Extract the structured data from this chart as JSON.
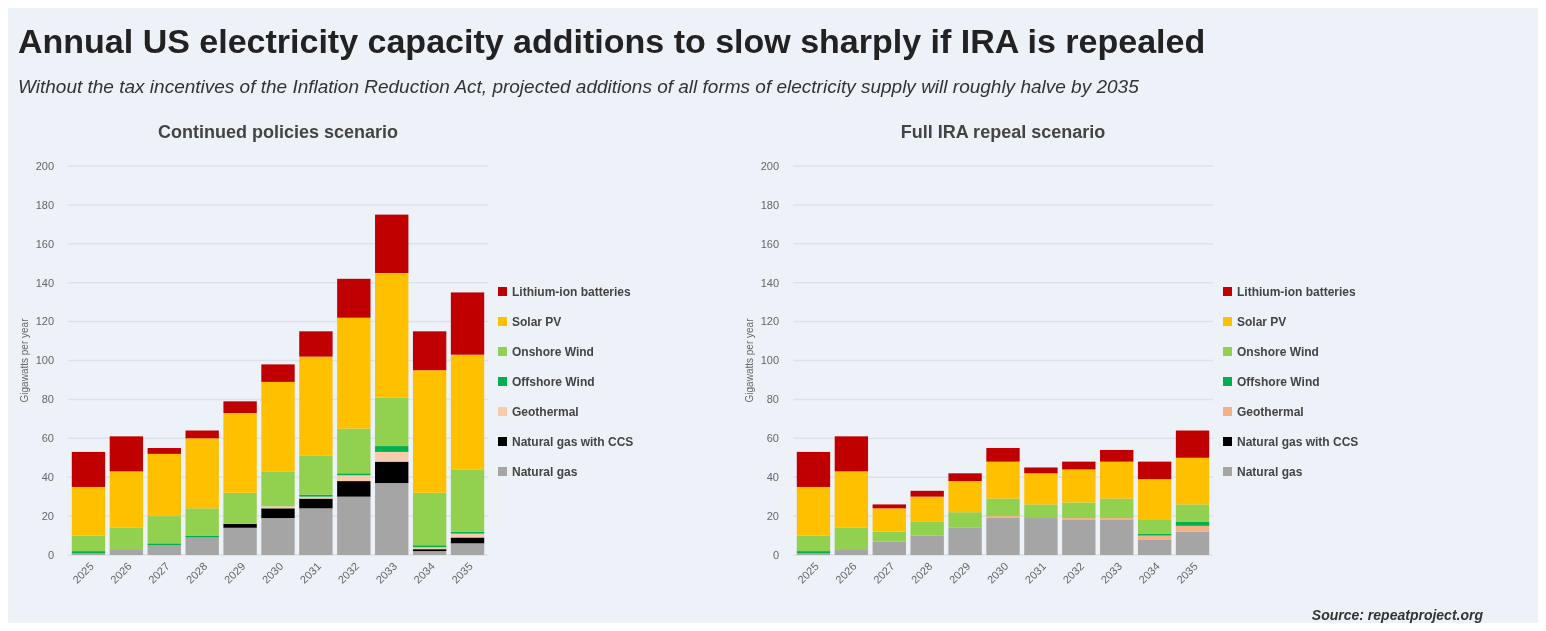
{
  "chart_data": [
    {
      "type": "bar",
      "stacked": true,
      "title": "Continued policies scenario",
      "ylabel": "Gigawatts per year",
      "annotations": [
        "Annual US electricity capacity additions to slow sharply if IRA is repealed",
        "Without the tax incentives of the Inflation Reduction Act, projected additions of all forms of electricity supply will roughly halve by 2035"
      ],
      "categories": [
        "2025",
        "2026",
        "2027",
        "2028",
        "2029",
        "2030",
        "2031",
        "2032",
        "2033",
        "2034",
        "2035"
      ],
      "ylim": [
        0,
        200
      ],
      "yticks": [
        0,
        20,
        40,
        60,
        80,
        100,
        120,
        140,
        160,
        180,
        200
      ],
      "grid": "y",
      "legend": "right",
      "series": [
        {
          "name": "Natural gas",
          "color": "#a5a5a5",
          "values": [
            1,
            3,
            5,
            9,
            14,
            19,
            24,
            30,
            37,
            2,
            6
          ]
        },
        {
          "name": "Natural gas with CCS",
          "color": "#000000",
          "values": [
            0,
            0,
            0,
            0,
            2,
            5,
            5,
            8,
            11,
            1,
            3
          ]
        },
        {
          "name": "Geothermal",
          "color": "#f8cbad",
          "values": [
            0,
            0,
            0,
            0,
            0,
            1,
            1,
            3,
            5,
            1,
            2
          ]
        },
        {
          "name": "Offshore Wind",
          "color": "#00b050",
          "values": [
            1,
            0,
            1,
            1,
            0,
            0,
            1,
            1,
            3,
            1,
            1
          ]
        },
        {
          "name": "Onshore Wind",
          "color": "#92d050",
          "values": [
            8,
            11,
            14,
            14,
            16,
            18,
            20,
            23,
            25,
            27,
            32
          ]
        },
        {
          "name": "Solar PV",
          "color": "#ffc000",
          "values": [
            25,
            29,
            32,
            36,
            41,
            46,
            51,
            57,
            64,
            63,
            59
          ]
        },
        {
          "name": "Lithium-ion batteries",
          "color": "#c00000",
          "values": [
            18,
            18,
            3,
            4,
            6,
            9,
            13,
            20,
            30,
            20,
            32
          ]
        }
      ]
    },
    {
      "type": "bar",
      "stacked": true,
      "title": "Full IRA repeal scenario",
      "ylabel": "Gigawatts per year",
      "annotations": [
        "Source: repeatproject.org"
      ],
      "categories": [
        "2025",
        "2026",
        "2027",
        "2028",
        "2029",
        "2030",
        "2031",
        "2032",
        "2033",
        "2034",
        "2035"
      ],
      "ylim": [
        0,
        200
      ],
      "yticks": [
        0,
        20,
        40,
        60,
        80,
        100,
        120,
        140,
        160,
        180,
        200
      ],
      "grid": "y",
      "legend": "right",
      "series": [
        {
          "name": "Natural gas",
          "color": "#a5a5a5",
          "values": [
            1,
            3,
            7,
            10,
            14,
            19,
            19,
            18,
            18,
            8,
            12
          ]
        },
        {
          "name": "Natural gas with CCS",
          "color": "#000000",
          "values": [
            0,
            0,
            0,
            0,
            0,
            0,
            0,
            0,
            0,
            0,
            0
          ]
        },
        {
          "name": "Geothermal",
          "color": "#f4b183",
          "values": [
            0,
            0,
            0,
            0,
            0,
            1,
            0,
            1,
            1,
            2,
            3
          ]
        },
        {
          "name": "Offshore Wind",
          "color": "#00b050",
          "values": [
            1,
            0,
            0,
            0,
            0,
            0,
            0,
            0,
            0,
            1,
            2
          ]
        },
        {
          "name": "Onshore Wind",
          "color": "#92d050",
          "values": [
            8,
            11,
            5,
            7,
            8,
            9,
            7,
            8,
            10,
            7,
            9
          ]
        },
        {
          "name": "Solar PV",
          "color": "#ffc000",
          "values": [
            25,
            29,
            12,
            13,
            16,
            19,
            16,
            17,
            19,
            21,
            24
          ]
        },
        {
          "name": "Lithium-ion batteries",
          "color": "#c00000",
          "values": [
            18,
            18,
            2,
            3,
            4,
            7,
            3,
            4,
            6,
            9,
            14
          ]
        }
      ]
    }
  ]
}
